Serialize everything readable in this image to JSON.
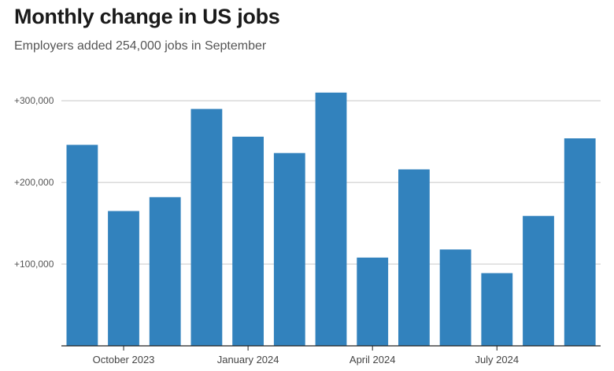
{
  "chart_data": {
    "type": "bar",
    "title": "Monthly change in US jobs",
    "subtitle": "Employers added 254,000 jobs in September",
    "categories": [
      "Sep 2023",
      "Oct 2023",
      "Nov 2023",
      "Dec 2023",
      "Jan 2024",
      "Feb 2024",
      "Mar 2024",
      "Apr 2024",
      "May 2024",
      "Jun 2024",
      "Jul 2024",
      "Aug 2024",
      "Sep 2024"
    ],
    "values": [
      246000,
      165000,
      182000,
      290000,
      256000,
      236000,
      310000,
      108000,
      216000,
      118000,
      89000,
      159000,
      254000
    ],
    "ylim": [
      0,
      330000
    ],
    "yticks": [
      {
        "value": 100000,
        "label": "+100,000"
      },
      {
        "value": 200000,
        "label": "+200,000"
      },
      {
        "value": 300000,
        "label": "+300,000"
      }
    ],
    "xticks": [
      {
        "index": 1,
        "label": "October 2023"
      },
      {
        "index": 4,
        "label": "January 2024"
      },
      {
        "index": 7,
        "label": "April 2024"
      },
      {
        "index": 10,
        "label": "July 2024"
      }
    ],
    "bar_color": "#3282bd",
    "grid": true
  }
}
